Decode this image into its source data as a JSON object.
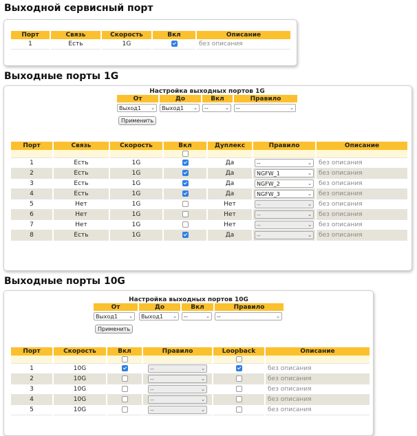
{
  "service": {
    "title": "Выходной сервисный порт",
    "headers": [
      "Порт",
      "Связь",
      "Скорость",
      "Вкл",
      "Описание"
    ],
    "row": {
      "port": "1",
      "link": "Есть",
      "speed": "1G",
      "on": true,
      "desc": "без описания"
    }
  },
  "ports1g": {
    "title": "Выходные порты 1G",
    "config": {
      "title": "Настройка выходных портов 1G",
      "headers": [
        "От",
        "До",
        "Вкл",
        "Правило"
      ],
      "from": "Выход1",
      "to": "Выход1",
      "on": "--",
      "rule": "--",
      "apply": "Применить"
    },
    "headers": [
      "Порт",
      "Связь",
      "Скорость",
      "Вкл",
      "Дуплекс",
      "Правило",
      "Описание"
    ],
    "rows": [
      {
        "port": "1",
        "link": "Есть",
        "speed": "1G",
        "on": true,
        "duplex": "Да",
        "rule": "--",
        "rule_enabled": true,
        "desc": "без описания"
      },
      {
        "port": "2",
        "link": "Есть",
        "speed": "1G",
        "on": true,
        "duplex": "Да",
        "rule": "NGFW_1",
        "rule_enabled": true,
        "desc": "без описания"
      },
      {
        "port": "3",
        "link": "Есть",
        "speed": "1G",
        "on": true,
        "duplex": "Да",
        "rule": "NGFW_2",
        "rule_enabled": true,
        "desc": "без описания"
      },
      {
        "port": "4",
        "link": "Есть",
        "speed": "1G",
        "on": true,
        "duplex": "Да",
        "rule": "NGFW_3",
        "rule_enabled": true,
        "desc": "без описания"
      },
      {
        "port": "5",
        "link": "Нет",
        "speed": "1G",
        "on": false,
        "duplex": "Нет",
        "rule": "--",
        "rule_enabled": false,
        "desc": "без описания"
      },
      {
        "port": "6",
        "link": "Нет",
        "speed": "1G",
        "on": false,
        "duplex": "Нет",
        "rule": "--",
        "rule_enabled": false,
        "desc": "без описания"
      },
      {
        "port": "7",
        "link": "Нет",
        "speed": "1G",
        "on": false,
        "duplex": "Нет",
        "rule": "--",
        "rule_enabled": false,
        "desc": "без описания"
      },
      {
        "port": "8",
        "link": "Есть",
        "speed": "1G",
        "on": true,
        "duplex": "Да",
        "rule": "--",
        "rule_enabled": false,
        "desc": "без описания"
      }
    ]
  },
  "ports10g": {
    "title": "Выходные порты 10G",
    "config": {
      "title": "Настройка выходных портов 10G",
      "headers": [
        "От",
        "До",
        "Вкл",
        "Правило"
      ],
      "from": "Выход1",
      "to": "Выход1",
      "on": "--",
      "rule": "--",
      "apply": "Применить"
    },
    "headers": [
      "Порт",
      "Скорость",
      "Вкл",
      "Правило",
      "Loopback",
      "Описание"
    ],
    "rows": [
      {
        "port": "1",
        "speed": "10G",
        "on": true,
        "rule": "--",
        "loopback": true,
        "desc": "без описания"
      },
      {
        "port": "2",
        "speed": "10G",
        "on": false,
        "rule": "--",
        "loopback": false,
        "desc": "без описания"
      },
      {
        "port": "3",
        "speed": "10G",
        "on": false,
        "rule": "--",
        "loopback": false,
        "desc": "без описания"
      },
      {
        "port": "4",
        "speed": "10G",
        "on": false,
        "rule": "--",
        "loopback": false,
        "desc": "без описания"
      },
      {
        "port": "5",
        "speed": "10G",
        "on": false,
        "rule": "--",
        "loopback": false,
        "desc": "без описания"
      }
    ]
  }
}
